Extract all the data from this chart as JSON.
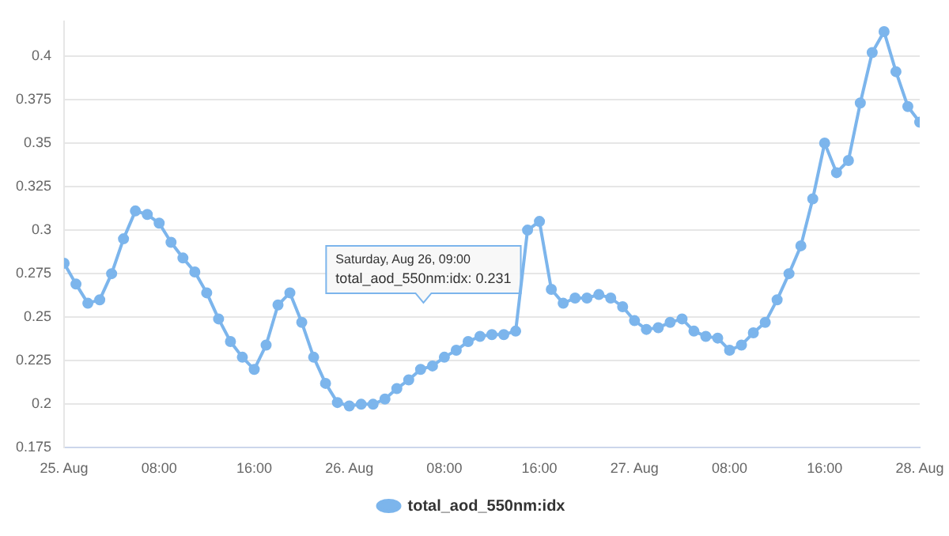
{
  "chart_data": {
    "type": "line",
    "x": [
      "--08-25T00:00",
      "--08-25T01:00",
      "--08-25T02:00",
      "--08-25T03:00",
      "--08-25T04:00",
      "--08-25T05:00",
      "--08-25T06:00",
      "--08-25T07:00",
      "--08-25T08:00",
      "--08-25T09:00",
      "--08-25T10:00",
      "--08-25T11:00",
      "--08-25T12:00",
      "--08-25T13:00",
      "--08-25T14:00",
      "--08-25T15:00",
      "--08-25T16:00",
      "--08-25T17:00",
      "--08-25T18:00",
      "--08-25T19:00",
      "--08-25T20:00",
      "--08-25T21:00",
      "--08-25T22:00",
      "--08-25T23:00",
      "--08-26T00:00",
      "--08-26T01:00",
      "--08-26T02:00",
      "--08-26T03:00",
      "--08-26T04:00",
      "--08-26T05:00",
      "--08-26T06:00",
      "--08-26T07:00",
      "--08-26T08:00",
      "--08-26T09:00",
      "--08-26T10:00",
      "--08-26T11:00",
      "--08-26T12:00",
      "--08-26T13:00",
      "--08-26T14:00",
      "--08-26T15:00",
      "--08-26T16:00",
      "--08-26T17:00",
      "--08-26T18:00",
      "--08-26T19:00",
      "--08-26T20:00",
      "--08-26T21:00",
      "--08-26T22:00",
      "--08-26T23:00",
      "--08-27T00:00",
      "--08-27T01:00",
      "--08-27T02:00",
      "--08-27T03:00",
      "--08-27T04:00",
      "--08-27T05:00",
      "--08-27T06:00",
      "--08-27T07:00",
      "--08-27T08:00",
      "--08-27T09:00",
      "--08-27T10:00",
      "--08-27T11:00",
      "--08-27T12:00",
      "--08-27T13:00",
      "--08-27T14:00",
      "--08-27T15:00",
      "--08-27T16:00",
      "--08-27T17:00",
      "--08-27T18:00",
      "--08-27T19:00",
      "--08-27T20:00",
      "--08-27T21:00",
      "--08-27T22:00",
      "--08-27T23:00",
      "--08-28T00:00"
    ],
    "series": [
      {
        "name": "total_aod_550nm:idx",
        "color": "#7cb5ec",
        "values": [
          0.281,
          0.269,
          0.258,
          0.26,
          0.275,
          0.295,
          0.311,
          0.309,
          0.304,
          0.293,
          0.284,
          0.276,
          0.264,
          0.249,
          0.236,
          0.227,
          0.22,
          0.234,
          0.257,
          0.264,
          0.247,
          0.227,
          0.212,
          0.201,
          0.199,
          0.2,
          0.2,
          0.203,
          0.209,
          0.214,
          0.22,
          0.222,
          0.227,
          0.231,
          0.236,
          0.239,
          0.24,
          0.24,
          0.242,
          0.3,
          0.305,
          0.266,
          0.258,
          0.261,
          0.261,
          0.263,
          0.261,
          0.256,
          0.248,
          0.243,
          0.244,
          0.247,
          0.249,
          0.242,
          0.239,
          0.238,
          0.231,
          0.234,
          0.241,
          0.247,
          0.26,
          0.275,
          0.291,
          0.318,
          0.35,
          0.333,
          0.34,
          0.373,
          0.402,
          0.414,
          0.391,
          0.371,
          0.362
        ]
      }
    ],
    "xlim": [
      "--08-25T00:00",
      "--08-28T00:00"
    ],
    "xticks": [
      {
        "value": "--08-25T00:00",
        "label": "25. Aug"
      },
      {
        "value": "--08-25T08:00",
        "label": "08:00"
      },
      {
        "value": "--08-25T16:00",
        "label": "16:00"
      },
      {
        "value": "--08-26T00:00",
        "label": "26. Aug"
      },
      {
        "value": "--08-26T08:00",
        "label": "08:00"
      },
      {
        "value": "--08-26T16:00",
        "label": "16:00"
      },
      {
        "value": "--08-27T00:00",
        "label": "27. Aug"
      },
      {
        "value": "--08-27T08:00",
        "label": "08:00"
      },
      {
        "value": "--08-27T16:00",
        "label": "16:00"
      },
      {
        "value": "--08-28T00:00",
        "label": "28. Aug"
      }
    ],
    "ylim": [
      0.175,
      0.42
    ],
    "yticks": [
      0.175,
      0.2,
      0.225,
      0.25,
      0.275,
      0.3,
      0.325,
      0.35,
      0.375,
      0.4
    ],
    "grid": "y",
    "legend": "bottom",
    "marker": "circle",
    "line_style": "solid",
    "annotations": [
      "Saturday, Aug 26, 09:00",
      "total_aod_550nm:idx: 0.231"
    ]
  }
}
